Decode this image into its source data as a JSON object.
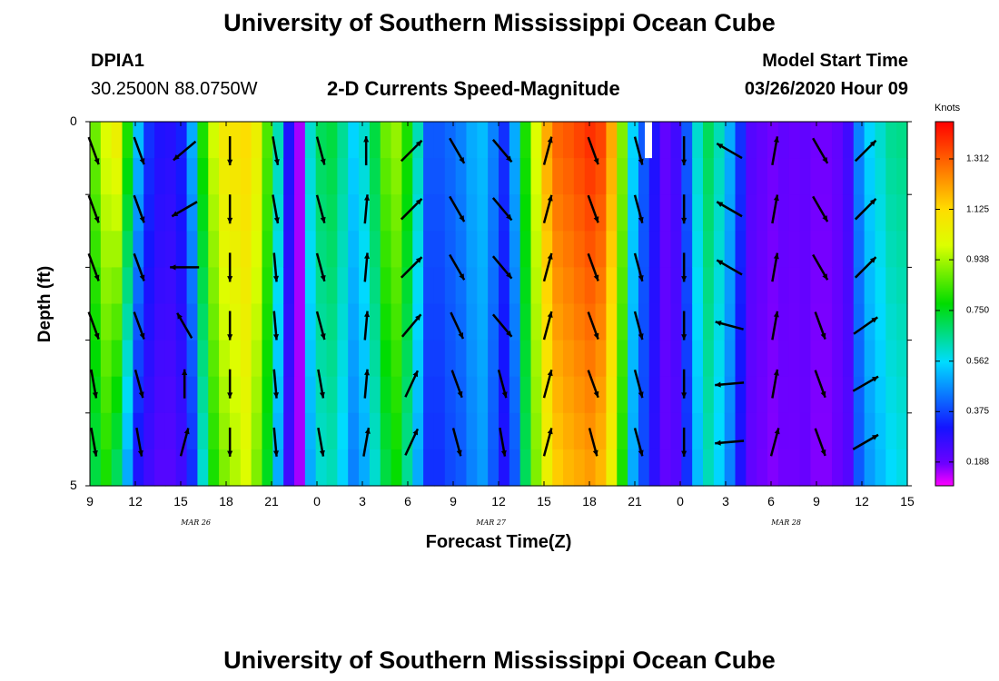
{
  "header": {
    "title_top": "University of Southern Mississippi Ocean Cube",
    "title_bottom": "University of Southern Mississippi Ocean Cube",
    "station_id": "DPIA1",
    "station_coords": "30.2500N 88.0750W",
    "plot_title": "2-D Currents Speed-Magnitude",
    "model_start_label": "Model Start Time",
    "model_start_value": "03/26/2020 Hour 09"
  },
  "chart_data": {
    "type": "heatmap",
    "title": "2-D Currents Speed-Magnitude",
    "xlabel": "Forecast Time(Z)",
    "ylabel": "Depth (ft)",
    "x_tick_labels": [
      "9",
      "12",
      "15",
      "18",
      "21",
      "0",
      "3",
      "6",
      "9",
      "12",
      "15",
      "18",
      "21",
      "0",
      "3",
      "6",
      "9",
      "12",
      "15"
    ],
    "x_hours": [
      0,
      3,
      6,
      9,
      12,
      15,
      18,
      21,
      24,
      27,
      30,
      33,
      36,
      39,
      42,
      45,
      48,
      51,
      54
    ],
    "date_labels": [
      {
        "text": "MAR 26",
        "hour": 7
      },
      {
        "text": "MAR 27",
        "hour": 26.5
      },
      {
        "text": "MAR 28",
        "hour": 46
      }
    ],
    "y_tick_labels": [
      "0",
      "5"
    ],
    "ylim": [
      0,
      5
    ],
    "depth_levels": [
      0.25,
      0.75,
      1.25,
      1.75,
      2.25,
      2.75,
      3.25,
      3.75,
      4.25,
      4.75
    ],
    "colorbar": {
      "label": "Knots",
      "range": [
        0.1,
        1.45
      ],
      "tick_labels": [
        "1.312",
        "1.125",
        "0.938",
        "0.750",
        "0.562",
        "0.375",
        "0.188"
      ],
      "tick_values": [
        1.312,
        1.125,
        0.938,
        0.75,
        0.562,
        0.375,
        0.188
      ]
    },
    "speed_surface_knots": [
      0.88,
      1.0,
      1.05,
      0.8,
      0.52,
      0.35,
      0.3,
      0.29,
      0.33,
      0.5,
      0.8,
      0.98,
      1.08,
      1.1,
      1.12,
      1.05,
      0.85,
      0.62,
      0.3,
      0.15,
      0.6,
      0.7,
      0.72,
      0.65,
      0.55,
      0.6,
      0.72,
      0.88,
      0.92,
      0.8,
      0.62,
      0.4,
      0.4,
      0.42,
      0.45,
      0.5,
      0.52,
      0.45,
      0.35,
      0.5,
      0.8,
      1.0,
      1.2,
      1.3,
      1.32,
      1.35,
      1.38,
      1.35,
      1.2,
      0.9,
      0.55,
      0.4,
      0.3,
      0.2,
      0.25,
      0.4,
      0.6,
      0.7,
      0.62,
      0.5,
      0.35,
      0.22,
      0.2,
      0.18,
      0.2,
      0.19,
      0.2,
      0.18,
      0.18,
      0.2,
      0.25,
      0.45,
      0.55,
      0.6,
      0.65,
      0.66
    ],
    "speed_bottom_knots": [
      0.72,
      0.8,
      0.7,
      0.5,
      0.3,
      0.25,
      0.22,
      0.22,
      0.25,
      0.35,
      0.6,
      0.8,
      0.9,
      0.95,
      1.0,
      0.9,
      0.75,
      0.5,
      0.25,
      0.15,
      0.5,
      0.6,
      0.62,
      0.55,
      0.45,
      0.5,
      0.6,
      0.72,
      0.78,
      0.65,
      0.5,
      0.35,
      0.35,
      0.38,
      0.4,
      0.45,
      0.48,
      0.4,
      0.3,
      0.4,
      0.7,
      0.9,
      1.05,
      1.15,
      1.18,
      1.2,
      1.22,
      1.18,
      1.05,
      0.8,
      0.5,
      0.38,
      0.28,
      0.2,
      0.22,
      0.35,
      0.52,
      0.62,
      0.55,
      0.45,
      0.3,
      0.2,
      0.18,
      0.17,
      0.18,
      0.18,
      0.19,
      0.17,
      0.17,
      0.19,
      0.22,
      0.4,
      0.48,
      0.52,
      0.56,
      0.58
    ],
    "missing": [
      {
        "hour": 36.9,
        "depth_range": [
          0,
          0.5
        ]
      }
    ],
    "vector_hours": [
      0,
      3,
      6,
      9,
      12,
      15,
      18,
      21,
      24,
      27,
      30,
      33,
      36,
      39,
      42,
      45,
      48,
      51
    ],
    "vector_directions_deg": [
      160,
      160,
      230,
      180,
      170,
      165,
      0,
      45,
      150,
      140,
      15,
      160,
      165,
      180,
      300,
      10,
      150,
      45
    ],
    "vector_directions_by_depth_deg": {
      "0.25": [
        160,
        160,
        230,
        180,
        170,
        165,
        0,
        45,
        150,
        140,
        15,
        160,
        165,
        180,
        300,
        10,
        150,
        45
      ],
      "0.75": [
        160,
        160,
        240,
        180,
        170,
        165,
        5,
        45,
        150,
        140,
        15,
        160,
        165,
        180,
        300,
        10,
        150,
        45
      ],
      "1.25": [
        160,
        160,
        270,
        180,
        175,
        165,
        5,
        45,
        150,
        140,
        15,
        160,
        165,
        180,
        300,
        10,
        150,
        45
      ],
      "1.75": [
        160,
        160,
        330,
        180,
        175,
        165,
        5,
        40,
        155,
        140,
        15,
        160,
        165,
        180,
        285,
        10,
        160,
        55
      ],
      "2.25": [
        170,
        165,
        0,
        180,
        175,
        170,
        5,
        25,
        160,
        165,
        15,
        160,
        165,
        180,
        265,
        10,
        160,
        60
      ],
      "2.75": [
        170,
        170,
        15,
        180,
        175,
        170,
        10,
        25,
        165,
        170,
        15,
        165,
        165,
        180,
        265,
        15,
        160,
        60
      ]
    }
  }
}
